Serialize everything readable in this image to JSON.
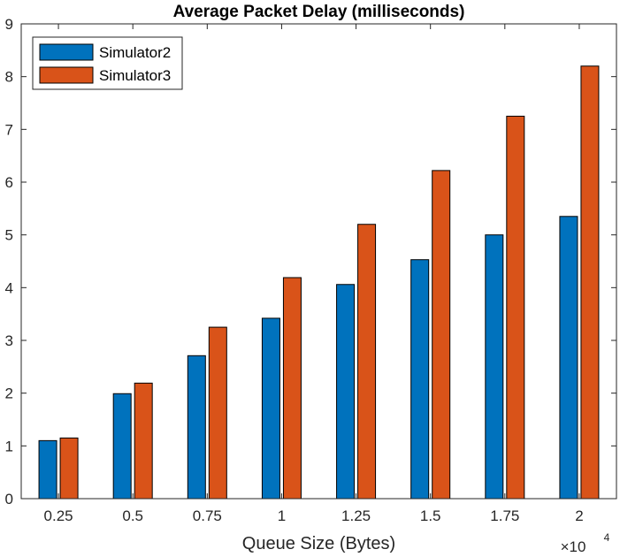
{
  "chart_data": {
    "type": "bar",
    "title": "Average Packet Delay (milliseconds)",
    "xlabel": "Queue Size (Bytes)",
    "ylabel": "",
    "x_exponent_base": "×10",
    "x_exponent_power": "4",
    "categories": [
      "0.25",
      "0.5",
      "0.75",
      "1",
      "1.25",
      "1.5",
      "1.75",
      "2"
    ],
    "series": [
      {
        "name": "Simulator2",
        "color": "#0072BD",
        "values": [
          1.1,
          1.99,
          2.71,
          3.42,
          4.06,
          4.53,
          5.0,
          5.35
        ]
      },
      {
        "name": "Simulator3",
        "color": "#D95319",
        "values": [
          1.15,
          2.19,
          3.25,
          4.19,
          5.2,
          6.22,
          7.25,
          8.2
        ]
      }
    ],
    "ylim": [
      0,
      9
    ],
    "yticks": [
      "0",
      "1",
      "2",
      "3",
      "4",
      "5",
      "6",
      "7",
      "8",
      "9"
    ],
    "grid": false,
    "legend_location": "top-left"
  }
}
